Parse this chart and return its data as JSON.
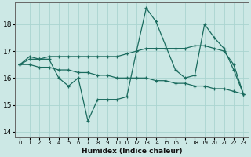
{
  "xlabel": "Humidex (Indice chaleur)",
  "xlim": [
    -0.5,
    23.5
  ],
  "ylim": [
    13.8,
    18.8
  ],
  "yticks": [
    14,
    15,
    16,
    17,
    18
  ],
  "xticks": [
    0,
    1,
    2,
    3,
    4,
    5,
    6,
    7,
    8,
    9,
    10,
    11,
    12,
    13,
    14,
    15,
    16,
    17,
    18,
    19,
    20,
    21,
    22,
    23
  ],
  "bg_color": "#cce8e5",
  "grid_color": "#aad4d0",
  "line_color": "#1a6b5e",
  "series1_y": [
    16.5,
    16.8,
    16.7,
    16.7,
    16.0,
    15.7,
    16.0,
    14.4,
    15.2,
    15.2,
    15.2,
    15.3,
    17.0,
    18.6,
    18.1,
    17.2,
    16.3,
    16.0,
    16.1,
    18.0,
    17.5,
    17.1,
    16.3,
    15.4
  ],
  "series2_y": [
    16.5,
    16.5,
    16.4,
    16.4,
    16.3,
    16.3,
    16.2,
    16.2,
    16.1,
    16.1,
    16.0,
    16.0,
    16.0,
    16.0,
    15.9,
    15.9,
    15.8,
    15.8,
    15.7,
    15.7,
    15.6,
    15.6,
    15.5,
    15.4
  ],
  "series3_y": [
    16.5,
    16.7,
    16.7,
    16.8,
    16.8,
    16.8,
    16.8,
    16.8,
    16.8,
    16.8,
    16.8,
    16.9,
    17.0,
    17.1,
    17.1,
    17.1,
    17.1,
    17.1,
    17.2,
    17.2,
    17.1,
    17.0,
    16.5,
    15.4
  ]
}
